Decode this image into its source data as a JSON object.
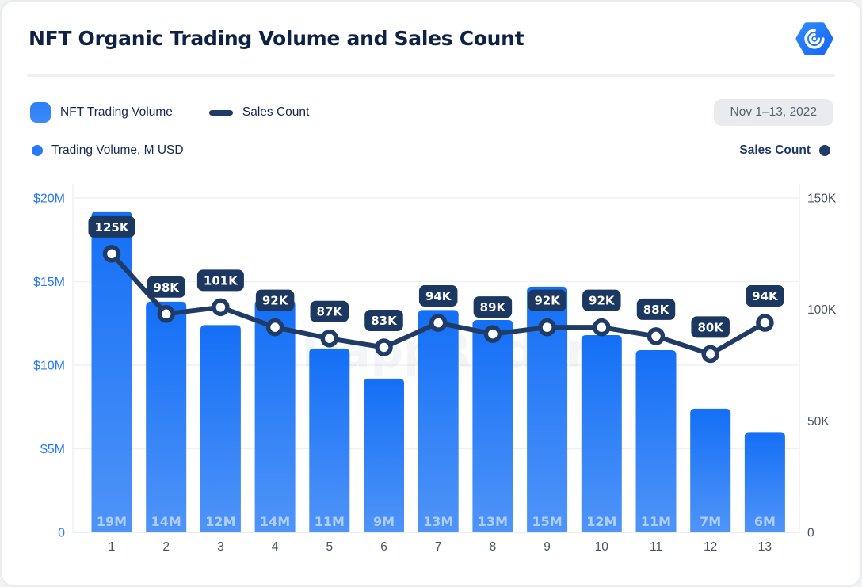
{
  "header": {
    "title": "NFT Organic Trading Volume and Sales Count",
    "logo_alt": "DappRadar"
  },
  "legend": {
    "volume_label": "NFT Trading Volume",
    "sales_label": "Sales Count",
    "volume_axis_label": "Trading Volume, M USD",
    "sales_axis_label": "Sales Count",
    "date_range": "Nov 1–13, 2022"
  },
  "watermark": "DappRadar",
  "colors": {
    "accent_blue": "#2B7FF7",
    "bar_top": "#146FF6",
    "bar_bottom": "#4F94F8",
    "navy_line": "#203C66",
    "label_box": "#1C3860",
    "axis_blue": "#2779F7",
    "axis_gray": "#485266",
    "grid": "#EFF1F5",
    "axis_line": "#E4E8ED",
    "bar_value_text": "rgba(255,255,255,0.55)",
    "title": "#0D2244",
    "badge_bg": "#E9EBEE",
    "badge_text": "#596273"
  },
  "chart_data": {
    "type": "combo-bar-line",
    "title": "NFT Organic Trading Volume and Sales Count",
    "period": "Nov 1–13, 2022",
    "categories": [
      "1",
      "2",
      "3",
      "4",
      "5",
      "6",
      "7",
      "8",
      "9",
      "10",
      "11",
      "12",
      "13"
    ],
    "series": [
      {
        "name": "NFT Trading Volume",
        "type": "bar",
        "axis": "left",
        "unit": "M USD",
        "values": [
          19,
          14,
          12,
          14,
          11,
          9,
          13,
          13,
          15,
          12,
          11,
          7,
          6
        ],
        "values_detail": [
          19.2,
          13.8,
          12.4,
          13.9,
          11.0,
          9.2,
          13.3,
          12.7,
          14.7,
          11.8,
          10.9,
          7.4,
          6.0
        ],
        "labels": [
          "19M",
          "14M",
          "12M",
          "14M",
          "11M",
          "9M",
          "13M",
          "13M",
          "15M",
          "12M",
          "11M",
          "7M",
          "6M"
        ]
      },
      {
        "name": "Sales Count",
        "type": "line",
        "axis": "right",
        "unit": "K",
        "values": [
          125,
          98,
          101,
          92,
          87,
          83,
          94,
          89,
          92,
          92,
          88,
          80,
          94
        ],
        "labels": [
          "125K",
          "98K",
          "101K",
          "92K",
          "87K",
          "83K",
          "94K",
          "89K",
          "92K",
          "92K",
          "88K",
          "80K",
          "94K"
        ]
      }
    ],
    "left_axis": {
      "label": "Trading Volume, M USD",
      "ticks": [
        "$20M",
        "$15M",
        "$10M",
        "$5M",
        "0"
      ],
      "tick_values": [
        20,
        15,
        10,
        5,
        0
      ],
      "max": 20
    },
    "right_axis": {
      "label": "Sales Count",
      "ticks": [
        "150K",
        "100K",
        "50K",
        "0"
      ],
      "tick_values": [
        150,
        100,
        50,
        0
      ],
      "max": 150
    },
    "grid": true,
    "legend_position": "top-left"
  }
}
